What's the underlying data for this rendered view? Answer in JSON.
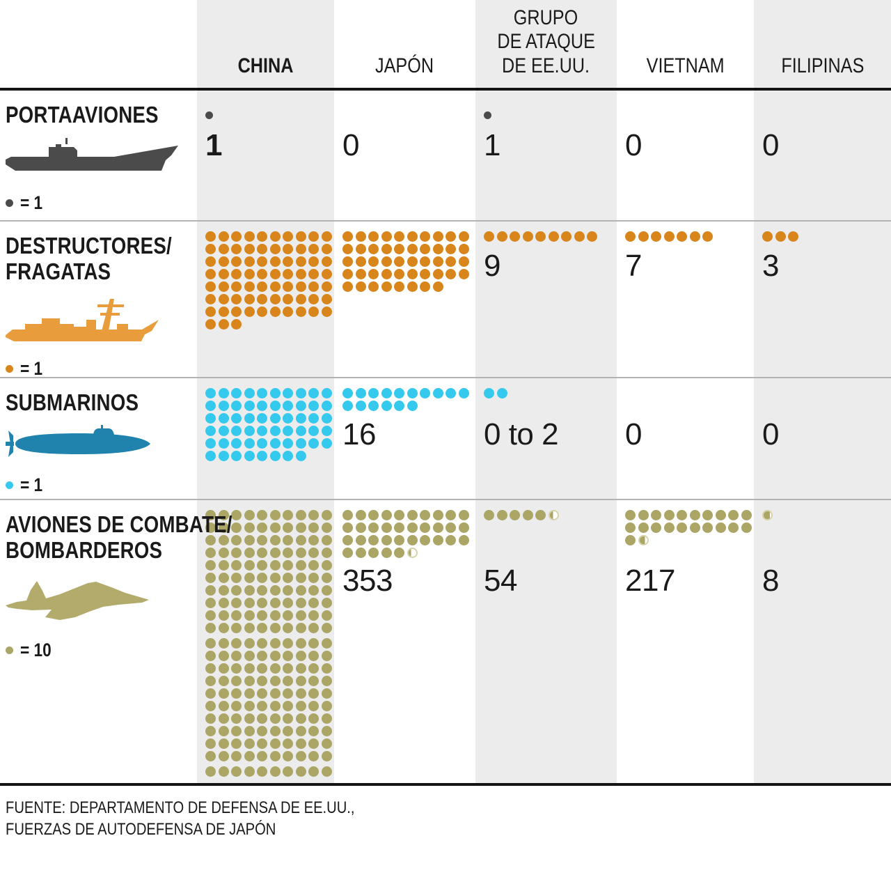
{
  "palette": {
    "band": "#ececec",
    "header_line": "#141414",
    "row_line": "#b3b3b3",
    "text": "#1a1a1a",
    "carrier_gray": "#4b4b4b",
    "orange": "#d8861b",
    "orange_icon": "#e99c3c",
    "cyan": "#36c9ee",
    "submarine_icon": "#1f83ad",
    "olive": "#aba566",
    "olive_light": "#d6d2a9",
    "jet_icon": "#b2ab6c"
  },
  "columns": [
    {
      "id": "china",
      "lines": [
        "CHINA"
      ],
      "bold": true
    },
    {
      "id": "japon",
      "lines": [
        "JAPÓN"
      ],
      "bold": false
    },
    {
      "id": "eeuu",
      "lines": [
        "GRUPO",
        "DE ATAQUE",
        "DE EE.UU."
      ],
      "bold": false
    },
    {
      "id": "vietnam",
      "lines": [
        "VIETNAM"
      ],
      "bold": false
    },
    {
      "id": "filipinas",
      "lines": [
        "FILIPINAS"
      ],
      "bold": false
    }
  ],
  "rows": [
    {
      "id": "portaaviones",
      "label_lines": [
        "PORTAAVIONES"
      ],
      "icon": "aircraft-carrier",
      "color": "#4b4b4b",
      "icon_color": "#4b4b4b",
      "legend_label": "= 1",
      "unit_per_dot": 1,
      "cells": [
        {
          "dots_full": 1,
          "value": "1",
          "value_bold": true
        },
        {
          "dots_full": 0,
          "value": "0"
        },
        {
          "dots_full": 1,
          "value": "1"
        },
        {
          "dots_full": 0,
          "value": "0"
        },
        {
          "dots_full": 0,
          "value": "0"
        }
      ]
    },
    {
      "id": "destructores",
      "label_lines": [
        "DESTRUCTORES/",
        "FRAGATAS"
      ],
      "icon": "destroyer",
      "color": "#d8861b",
      "icon_color": "#e99c3c",
      "legend_label": "= 1",
      "unit_per_dot": 1,
      "cells": [
        {
          "dots_full": 73
        },
        {
          "dots_full": 48
        },
        {
          "dots_full": 9,
          "value": "9"
        },
        {
          "dots_full": 7,
          "value": "7"
        },
        {
          "dots_full": 3,
          "value": "3"
        }
      ]
    },
    {
      "id": "submarinos",
      "label_lines": [
        "SUBMARINOS"
      ],
      "icon": "submarine",
      "color": "#36c9ee",
      "icon_color": "#1f83ad",
      "legend_label": "= 1",
      "unit_per_dot": 1,
      "cells": [
        {
          "dots_full": 58
        },
        {
          "dots_full": 16,
          "value": "16"
        },
        {
          "dots_full": 2,
          "value": "0 to 2"
        },
        {
          "dots_full": 0,
          "value": "0"
        },
        {
          "dots_full": 0,
          "value": "0"
        }
      ]
    },
    {
      "id": "aviones",
      "label_lines": [
        "AVIONES DE COMBATE/",
        "BOMBARDEROS"
      ],
      "icon": "fighter-jet",
      "color": "#aba566",
      "icon_color": "#b2ab6c",
      "legend_label": "= 10",
      "unit_per_dot": 10,
      "cells": [
        {
          "dots_full": 210
        },
        {
          "dots_full": 35,
          "dot_partial": 0.3,
          "value": "353"
        },
        {
          "dots_full": 5,
          "dot_partial": 0.4,
          "value": "54"
        },
        {
          "dots_full": 21,
          "dot_partial": 0.7,
          "value": "217"
        },
        {
          "dots_full": 0,
          "dot_partial": 0.8,
          "value": "8"
        }
      ]
    }
  ],
  "source_lines": [
    "FUENTE: DEPARTAMENTO DE DEFENSA DE EE.UU.,",
    "FUERZAS DE AUTODEFENSA DE JAPÓN"
  ],
  "chart_data": {
    "type": "table",
    "subtype": "pictogram",
    "categories": [
      "PORTAAVIONES",
      "DESTRUCTORES/FRAGATAS",
      "SUBMARINOS",
      "AVIONES DE COMBATE/BOMBARDEROS"
    ],
    "units_per_dot": [
      1,
      1,
      1,
      10
    ],
    "series": [
      {
        "name": "CHINA",
        "values": [
          1,
          73,
          58,
          2100
        ],
        "labels_shown": [
          "1",
          "",
          "",
          ""
        ]
      },
      {
        "name": "JAPÓN",
        "values": [
          0,
          48,
          16,
          353
        ],
        "labels_shown": [
          "0",
          "",
          "16",
          "353"
        ]
      },
      {
        "name": "GRUPO DE ATAQUE DE EE.UU.",
        "values": [
          1,
          9,
          "0 to 2",
          54
        ],
        "labels_shown": [
          "1",
          "9",
          "0 to 2",
          "54"
        ]
      },
      {
        "name": "VIETNAM",
        "values": [
          0,
          7,
          0,
          217
        ],
        "labels_shown": [
          "0",
          "7",
          "0",
          "217"
        ]
      },
      {
        "name": "FILIPINAS",
        "values": [
          0,
          3,
          0,
          8
        ],
        "labels_shown": [
          "0",
          "3",
          "0",
          "8"
        ]
      }
    ],
    "legend": [
      "1 dot = 1 (ships/submarines)",
      "1 dot = 10 (aircraft)"
    ],
    "source": "FUENTE: DEPARTAMENTO DE DEFENSA DE EE.UU., FUERZAS DE AUTODEFENSA DE JAPÓN"
  }
}
